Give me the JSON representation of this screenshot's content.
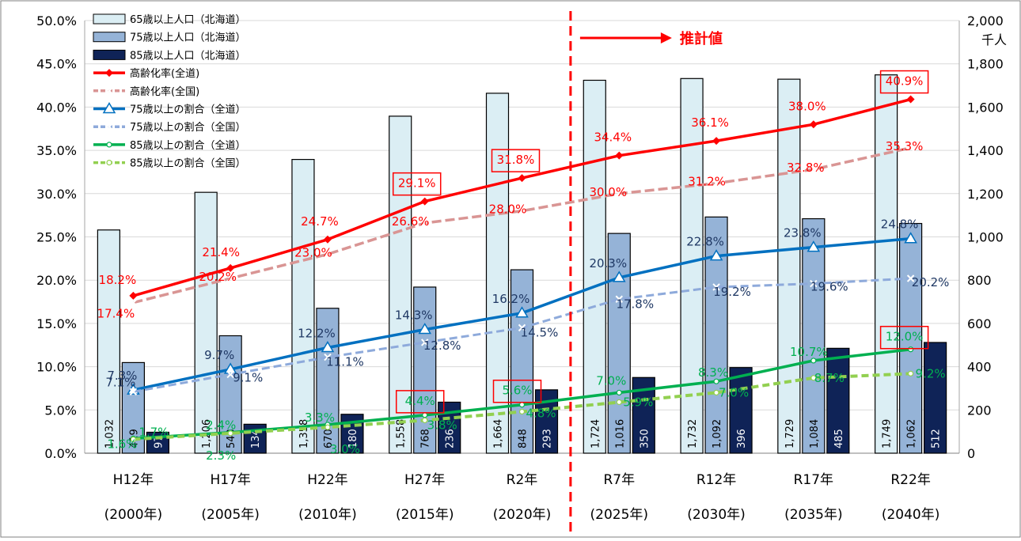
{
  "chart_data": {
    "type": "bar",
    "y_left": {
      "min": 0,
      "max": 50,
      "ticks": [
        "0.0%",
        "5.0%",
        "10.0%",
        "15.0%",
        "20.0%",
        "25.0%",
        "30.0%",
        "35.0%",
        "40.0%",
        "45.0%",
        "50.0%"
      ]
    },
    "y_right": {
      "min": 0,
      "max": 2000,
      "unit": "千人",
      "ticks": [
        "0",
        "200",
        "400",
        "600",
        "800",
        "1,000",
        "1,200",
        "1,400",
        "1,600",
        "1,800",
        "2,000"
      ]
    },
    "categories": [
      {
        "era": "H12年",
        "year": "(2000年)"
      },
      {
        "era": "H17年",
        "year": "(2005年)"
      },
      {
        "era": "H22年",
        "year": "(2010年)"
      },
      {
        "era": "H27年",
        "year": "(2015年)"
      },
      {
        "era": "R2年",
        "year": "(2020年)"
      },
      {
        "era": "R7年",
        "year": "(2025年)"
      },
      {
        "era": "R12年",
        "year": "(2030年)"
      },
      {
        "era": "R17年",
        "year": "(2035年)"
      },
      {
        "era": "R22年",
        "year": "(2040年)"
      }
    ],
    "projection_label": "推計値",
    "bar_series": [
      {
        "name": "65歳以上人口（北海道）",
        "color": "#dbeef4",
        "values": [
          1032,
          1206,
          1358,
          1558,
          1664,
          1724,
          1732,
          1729,
          1749
        ],
        "labels": [
          "1,032",
          "1,206",
          "1,358",
          "1,558",
          "1,664",
          "1,724",
          "1,732",
          "1,729",
          "1,749"
        ]
      },
      {
        "name": "75歳以上人口（北海道）",
        "color": "#95b3d7",
        "values": [
          419,
          543,
          670,
          768,
          848,
          1016,
          1092,
          1084,
          1062
        ],
        "labels": [
          "419",
          "543",
          "670",
          "768",
          "848",
          "1,016",
          "1,092",
          "1,084",
          "1,062"
        ]
      },
      {
        "name": "85歳以上人口（北海道）",
        "color": "#0f2357",
        "values": [
          97,
          134,
          180,
          236,
          293,
          350,
          396,
          485,
          512
        ],
        "labels": [
          "97",
          "134",
          "180",
          "236",
          "293",
          "350",
          "396",
          "485",
          "512"
        ]
      }
    ],
    "line_series": [
      {
        "name": "高齢化率(全道)",
        "color": "#ff0000",
        "dash": "",
        "marker": "diamond",
        "label_color": "#ff0000",
        "values": [
          18.2,
          21.4,
          24.7,
          29.1,
          31.8,
          34.4,
          36.1,
          38.0,
          40.9
        ],
        "labels": [
          "18.2%",
          "21.4%",
          "24.7%",
          "29.1%",
          "31.8%",
          "34.4%",
          "36.1%",
          "38.0%",
          "40.9%"
        ]
      },
      {
        "name": "高齢化率(全国)",
        "color": "#d99594",
        "dash": "12 5",
        "marker": "x",
        "label_color": "#ff0000",
        "values": [
          17.4,
          20.2,
          23.0,
          26.6,
          28.0,
          30.0,
          31.2,
          32.8,
          35.3
        ],
        "labels": [
          "17.4%",
          "20.2%",
          "23.0%",
          "26.6%",
          "28.0%",
          "30.0%",
          "31.2%",
          "32.8%",
          "35.3%"
        ]
      },
      {
        "name": "75歳以上の割合（全道）",
        "color": "#0070c0",
        "dash": "",
        "marker": "triangle",
        "label_color": "#1f3864",
        "values": [
          7.3,
          9.7,
          12.2,
          14.3,
          16.2,
          20.3,
          22.8,
          23.8,
          24.8
        ],
        "labels": [
          "7.3%",
          "9.7%",
          "12.2%",
          "14.3%",
          "16.2%",
          "20.3%",
          "22.8%",
          "23.8%",
          "24.8%"
        ]
      },
      {
        "name": "75歳以上の割合（全国）",
        "color": "#8eaadb",
        "dash": "10 5",
        "marker": "x",
        "label_color": "#1f3864",
        "values": [
          7.1,
          9.1,
          11.1,
          12.8,
          14.5,
          17.8,
          19.2,
          19.6,
          20.2
        ],
        "labels": [
          "7.1%",
          "9.1%",
          "11.1%",
          "12.8%",
          "14.5%",
          "17.8%",
          "19.2%",
          "19.6%",
          "20.2%"
        ]
      },
      {
        "name": "85歳以上の割合（全道）",
        "color": "#00b050",
        "dash": "",
        "marker": "circle",
        "label_color": "#00b050",
        "values": [
          1.7,
          2.4,
          3.3,
          4.4,
          5.6,
          7.0,
          8.3,
          10.7,
          12.0
        ],
        "labels": [
          "1.7%",
          "2.4%",
          "3.3%",
          "4.4%",
          "5.6%",
          "7.0%",
          "8.3%",
          "10.7%",
          "12.0%"
        ]
      },
      {
        "name": "85歳以上の割合（全国）",
        "color": "#92d050",
        "dash": "9 5",
        "marker": "circle",
        "label_color": "#00b050",
        "values": [
          1.6,
          2.3,
          3.0,
          3.8,
          4.8,
          5.9,
          7.0,
          8.7,
          9.2
        ],
        "labels": [
          "1.6%",
          "2.3%",
          "3.0%",
          "3.8%",
          "4.8%",
          "5.9%",
          "7.0%",
          "8.7%",
          "9.2%"
        ]
      }
    ],
    "legend_position": "top-left",
    "grid": true
  }
}
